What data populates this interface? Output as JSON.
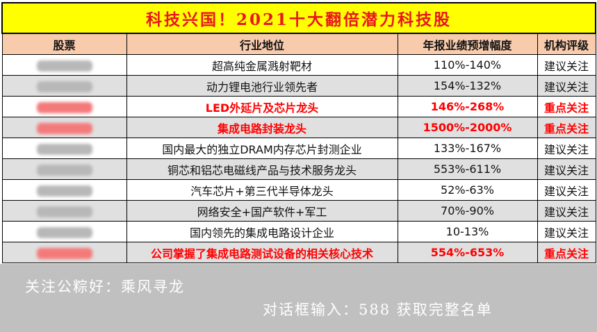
{
  "title": "科技兴国！2021十大翻倍潜力科技股",
  "headers": [
    "股票",
    "行业地位",
    "年报业绩预增幅度",
    "机构评级"
  ],
  "rows": [
    {
      "position": "超高纯金属溅射靶材",
      "growth": "110%-140%",
      "rating": "建议关注",
      "highlight": false
    },
    {
      "position": "动力锂电池行业领先者",
      "growth": "154%-132%",
      "rating": "建议关注",
      "highlight": false
    },
    {
      "position": "LED外延片及芯片龙头",
      "growth": "146%-268%",
      "rating": "重点关注",
      "highlight": true
    },
    {
      "position": "集成电路封装龙头",
      "growth": "1500%-2000%",
      "rating": "重点关注",
      "highlight": true
    },
    {
      "position": "国内最大的独立DRAM内存芯片封测企业",
      "growth": "133%-167%",
      "rating": "建议关注",
      "highlight": false
    },
    {
      "position": "铜芯和铝芯电磁线产品与技术服务龙头",
      "growth": "553%-611%",
      "rating": "建议关注",
      "highlight": false
    },
    {
      "position": "汽车芯片+第三代半导体龙头",
      "growth": "52%-63%",
      "rating": "建议关注",
      "highlight": false
    },
    {
      "position": "网络安全+国产软件+军工",
      "growth": "70%-90%",
      "rating": "建议关注",
      "highlight": false
    },
    {
      "position": "国内领先的集成电路设计企业",
      "growth": "10-13%",
      "rating": "建议关注",
      "highlight": false
    },
    {
      "position": "公司掌握了集成电路测试设备的相关核心技术",
      "growth": "554%-653%",
      "rating": "重点关注",
      "highlight": true
    }
  ],
  "footer": {
    "line1": "关注公粽好：乘风寻龙",
    "line2": "对话框输入：588 获取完整名单"
  },
  "colors": {
    "title_bg": "#ffff00",
    "title_text": "#e8161e",
    "header_bg": "#f8cbad",
    "highlight_text": "#ff0000",
    "footer_bg": "#c0c0c0"
  }
}
